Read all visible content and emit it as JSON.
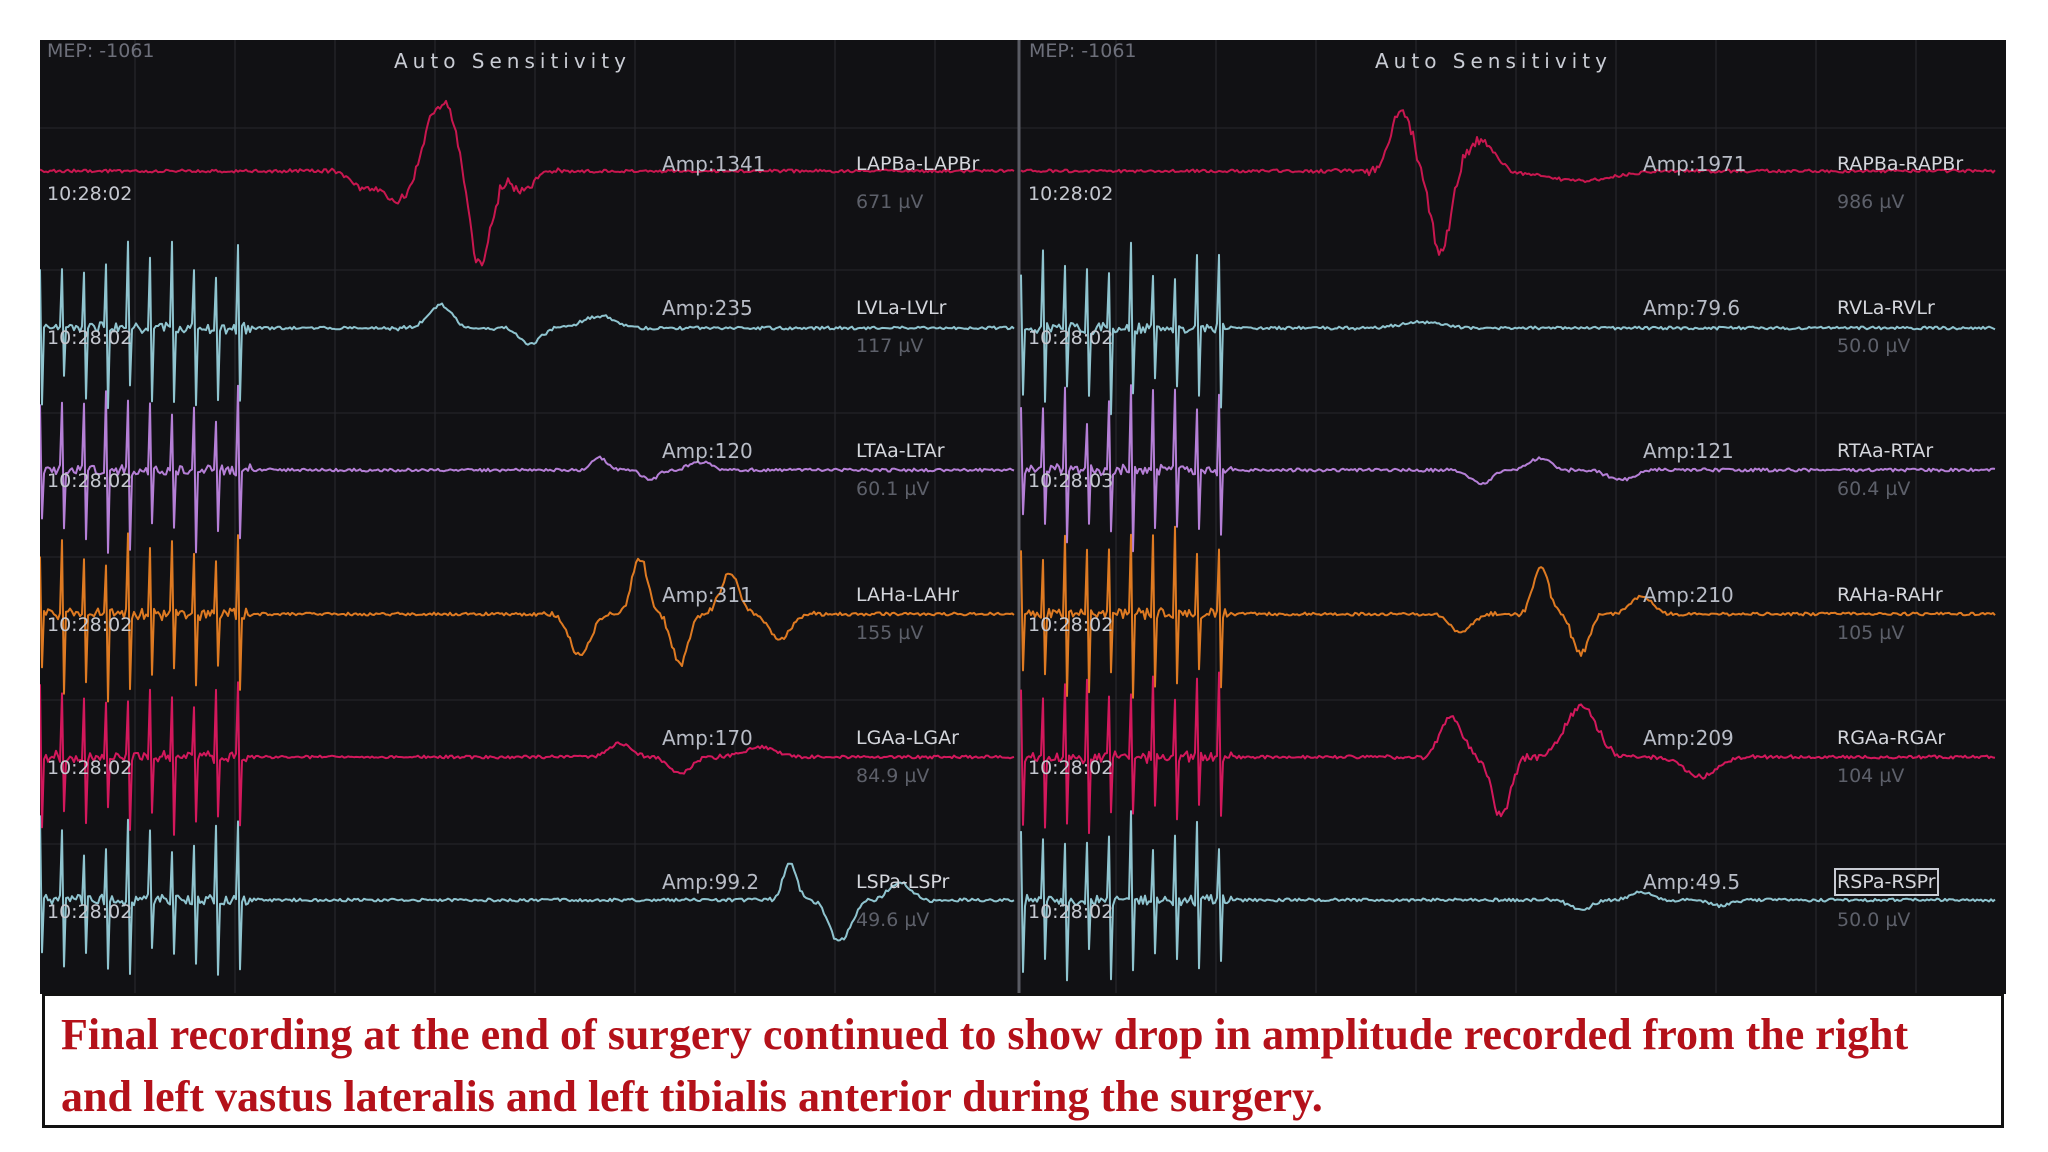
{
  "panels": [
    {
      "mep": "MEP: -1061",
      "mode": "Auto Sensitivity",
      "channels": [
        {
          "amp": "Amp:1341",
          "name": "LAPBa-LAPBr",
          "scale": "671 µV",
          "time": "10:28:02"
        },
        {
          "amp": "Amp:235",
          "name": "LVLa-LVLr",
          "scale": "117 µV",
          "time": "10:28:02"
        },
        {
          "amp": "Amp:120",
          "name": "LTAa-LTAr",
          "scale": "60.1 µV",
          "time": "10:28:02"
        },
        {
          "amp": "Amp:311",
          "name": "LAHa-LAHr",
          "scale": "155 µV",
          "time": "10:28:02"
        },
        {
          "amp": "Amp:170",
          "name": "LGAa-LGAr",
          "scale": "84.9 µV",
          "time": "10:28:02"
        },
        {
          "amp": "Amp:99.2",
          "name": "LSPa-LSPr",
          "scale": "49.6 µV",
          "time": "10:28:02"
        }
      ]
    },
    {
      "mep": "MEP: -1061",
      "mode": "Auto Sensitivity",
      "channels": [
        {
          "amp": "Amp:1971",
          "name": "RAPBa-RAPBr",
          "scale": "986 µV",
          "time": "10:28:02"
        },
        {
          "amp": "Amp:79.6",
          "name": "RVLa-RVLr",
          "scale": "50.0 µV",
          "time": "10:28:02"
        },
        {
          "amp": "Amp:121",
          "name": "RTAa-RTAr",
          "scale": "60.4 µV",
          "time": "10:28:03"
        },
        {
          "amp": "Amp:210",
          "name": "RAHa-RAHr",
          "scale": "105 µV",
          "time": "10:28:02"
        },
        {
          "amp": "Amp:209",
          "name": "RGAa-RGAr",
          "scale": "104 µV",
          "time": "10:28:02"
        },
        {
          "amp": "Amp:49.5",
          "name": "RSPa-RSPr",
          "scale": "50.0 µV",
          "time": "10:28:02"
        }
      ]
    }
  ],
  "trace_colors": [
    "#c8174f",
    "#8fc4cf",
    "#b57fd6",
    "#de7a22",
    "#d3185c",
    "#8fc4cf"
  ],
  "caption": "Final recording at the end of surgery continued to show drop in amplitude recorded from the right and left vastus lateralis and left tibialis anterior during the surgery."
}
